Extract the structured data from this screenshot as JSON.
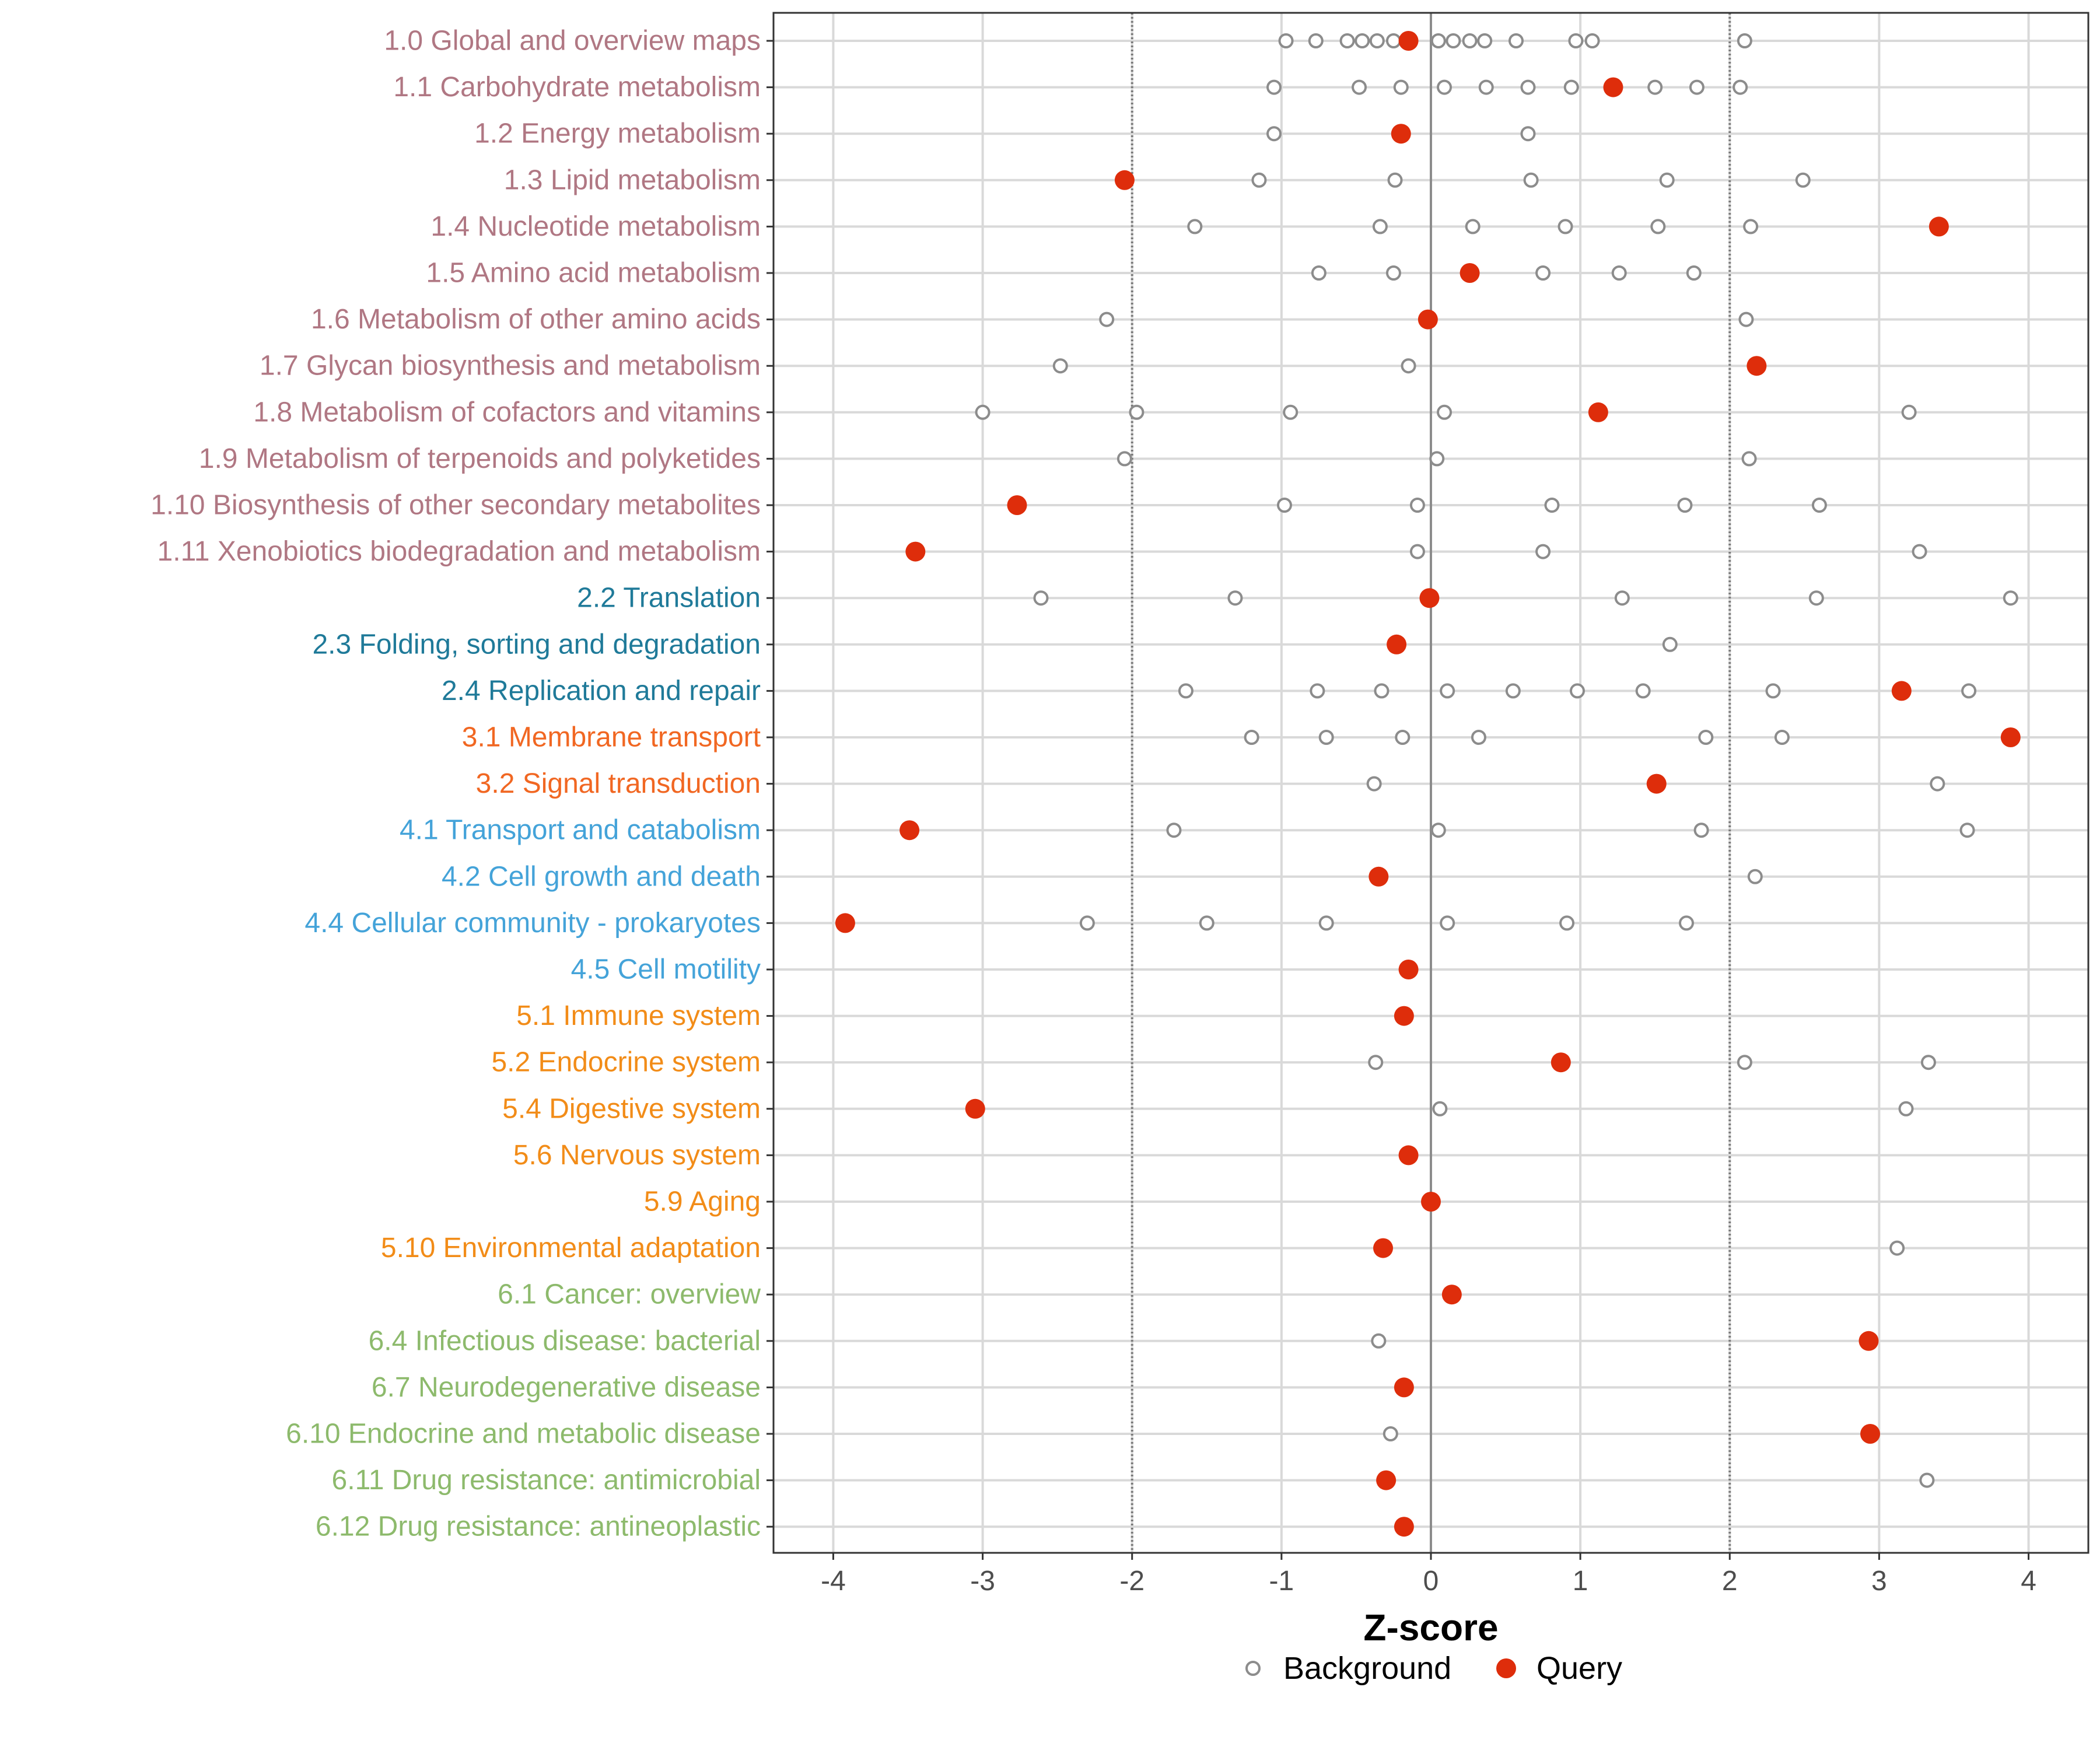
{
  "chart_data": {
    "type": "scatter",
    "title": "",
    "xlabel": "Z-score",
    "ylabel": "",
    "xlim": [
      -4.4,
      4.4
    ],
    "x_ticks": [
      -4,
      -3,
      -2,
      -1,
      0,
      1,
      2,
      3,
      4
    ],
    "x_tick_labels": [
      "-4",
      "-3",
      "-2",
      "-1",
      "0",
      "1",
      "2",
      "3",
      "4"
    ],
    "reference_lines": {
      "solid": [
        0
      ],
      "dotted": [
        -2,
        2
      ]
    },
    "grid": true,
    "legend": {
      "position": "bottom",
      "entries": [
        {
          "name": "Background",
          "style": "open-circle",
          "color": "#8c8c8c"
        },
        {
          "name": "Query",
          "style": "filled-circle",
          "color": "#de2d0b"
        }
      ]
    },
    "group_colors": {
      "metabolism": "#b07783",
      "genetic": "#1f7a99",
      "environmental": "#f16722",
      "cellular": "#44a3d9",
      "organismal": "#f28c18",
      "disease": "#8dba6c"
    },
    "categories": [
      {
        "label": "1.0 Global and overview maps",
        "group": "metabolism",
        "query": -0.15,
        "background": [
          -0.97,
          -0.77,
          -0.56,
          -0.46,
          -0.36,
          -0.25,
          0.05,
          0.15,
          0.26,
          0.36,
          0.57,
          0.97,
          1.08,
          2.1
        ]
      },
      {
        "label": "1.1 Carbohydrate metabolism",
        "group": "metabolism",
        "query": 1.22,
        "background": [
          -1.05,
          -0.48,
          -0.2,
          0.09,
          0.37,
          0.65,
          0.94,
          1.5,
          1.78,
          2.07
        ]
      },
      {
        "label": "1.2 Energy metabolism",
        "group": "metabolism",
        "query": -0.2,
        "background": [
          -1.05,
          0.65
        ]
      },
      {
        "label": "1.3 Lipid metabolism",
        "group": "metabolism",
        "query": -2.05,
        "background": [
          -1.15,
          -0.24,
          0.67,
          1.58,
          2.49
        ]
      },
      {
        "label": "1.4 Nucleotide metabolism",
        "group": "metabolism",
        "query": 3.4,
        "background": [
          -1.58,
          -0.34,
          0.28,
          0.9,
          1.52,
          2.14
        ]
      },
      {
        "label": "1.5 Amino acid metabolism",
        "group": "metabolism",
        "query": 0.26,
        "background": [
          -0.75,
          -0.25,
          0.75,
          1.26,
          1.76
        ]
      },
      {
        "label": "1.6 Metabolism of other amino acids",
        "group": "metabolism",
        "query": -0.02,
        "background": [
          -2.17,
          2.11
        ]
      },
      {
        "label": "1.7 Glycan biosynthesis and metabolism",
        "group": "metabolism",
        "query": 2.18,
        "background": [
          -2.48,
          -0.15
        ]
      },
      {
        "label": "1.8 Metabolism of cofactors and vitamins",
        "group": "metabolism",
        "query": 1.12,
        "background": [
          -3.0,
          -1.97,
          -0.94,
          0.09,
          3.2
        ]
      },
      {
        "label": "1.9 Metabolism of terpenoids and polyketides",
        "group": "metabolism",
        "query": null,
        "background": [
          -2.05,
          0.04,
          2.13
        ]
      },
      {
        "label": "1.10 Biosynthesis of other secondary metabolites",
        "group": "metabolism",
        "query": -2.77,
        "background": [
          -0.98,
          -0.09,
          0.81,
          1.7,
          2.6
        ]
      },
      {
        "label": "1.11 Xenobiotics biodegradation and metabolism",
        "group": "metabolism",
        "query": -3.45,
        "background": [
          -0.09,
          0.75,
          3.27
        ]
      },
      {
        "label": "2.2 Translation",
        "group": "genetic",
        "query": -0.01,
        "background": [
          -2.61,
          -1.31,
          1.28,
          2.58,
          3.88
        ]
      },
      {
        "label": "2.3 Folding, sorting and degradation",
        "group": "genetic",
        "query": -0.23,
        "background": [
          1.6
        ]
      },
      {
        "label": "2.4 Replication and repair",
        "group": "genetic",
        "query": 3.15,
        "background": [
          -1.64,
          -0.76,
          -0.33,
          0.11,
          0.55,
          0.98,
          1.42,
          2.29,
          3.6
        ]
      },
      {
        "label": "3.1 Membrane transport",
        "group": "environmental",
        "query": 3.88,
        "background": [
          -1.2,
          -0.7,
          -0.19,
          0.32,
          1.84,
          2.35
        ]
      },
      {
        "label": "3.2 Signal transduction",
        "group": "environmental",
        "query": 1.51,
        "background": [
          -0.38,
          3.39
        ]
      },
      {
        "label": "4.1 Transport and catabolism",
        "group": "cellular",
        "query": -3.49,
        "background": [
          -1.72,
          0.05,
          1.81,
          3.59
        ]
      },
      {
        "label": "4.2 Cell growth and death",
        "group": "cellular",
        "query": -0.35,
        "background": [
          2.17
        ]
      },
      {
        "label": "4.4 Cellular community - prokaryotes",
        "group": "cellular",
        "query": -3.92,
        "background": [
          -2.3,
          -1.5,
          -0.7,
          0.11,
          0.91,
          1.71
        ]
      },
      {
        "label": "4.5 Cell motility",
        "group": "cellular",
        "query": -0.15,
        "background": []
      },
      {
        "label": "5.1 Immune system",
        "group": "organismal",
        "query": -0.18,
        "background": []
      },
      {
        "label": "5.2 Endocrine system",
        "group": "organismal",
        "query": 0.87,
        "background": [
          -0.37,
          2.1,
          3.33
        ]
      },
      {
        "label": "5.4 Digestive system",
        "group": "organismal",
        "query": -3.05,
        "background": [
          0.06,
          3.18
        ]
      },
      {
        "label": "5.6 Nervous system",
        "group": "organismal",
        "query": -0.15,
        "background": []
      },
      {
        "label": "5.9 Aging",
        "group": "organismal",
        "query": 0.0,
        "background": []
      },
      {
        "label": "5.10 Environmental adaptation",
        "group": "organismal",
        "query": -0.32,
        "background": [
          3.12
        ]
      },
      {
        "label": "6.1 Cancer: overview",
        "group": "disease",
        "query": 0.14,
        "background": []
      },
      {
        "label": "6.4 Infectious disease: bacterial",
        "group": "disease",
        "query": 2.93,
        "background": [
          -0.35
        ]
      },
      {
        "label": "6.7 Neurodegenerative disease",
        "group": "disease",
        "query": -0.18,
        "background": []
      },
      {
        "label": "6.10 Endocrine and metabolic disease",
        "group": "disease",
        "query": 2.94,
        "background": [
          -0.27
        ]
      },
      {
        "label": "6.11 Drug resistance: antimicrobial",
        "group": "disease",
        "query": -0.3,
        "background": [
          3.32
        ]
      },
      {
        "label": "6.12 Drug resistance: antineoplastic",
        "group": "disease",
        "query": -0.18,
        "background": []
      }
    ]
  }
}
